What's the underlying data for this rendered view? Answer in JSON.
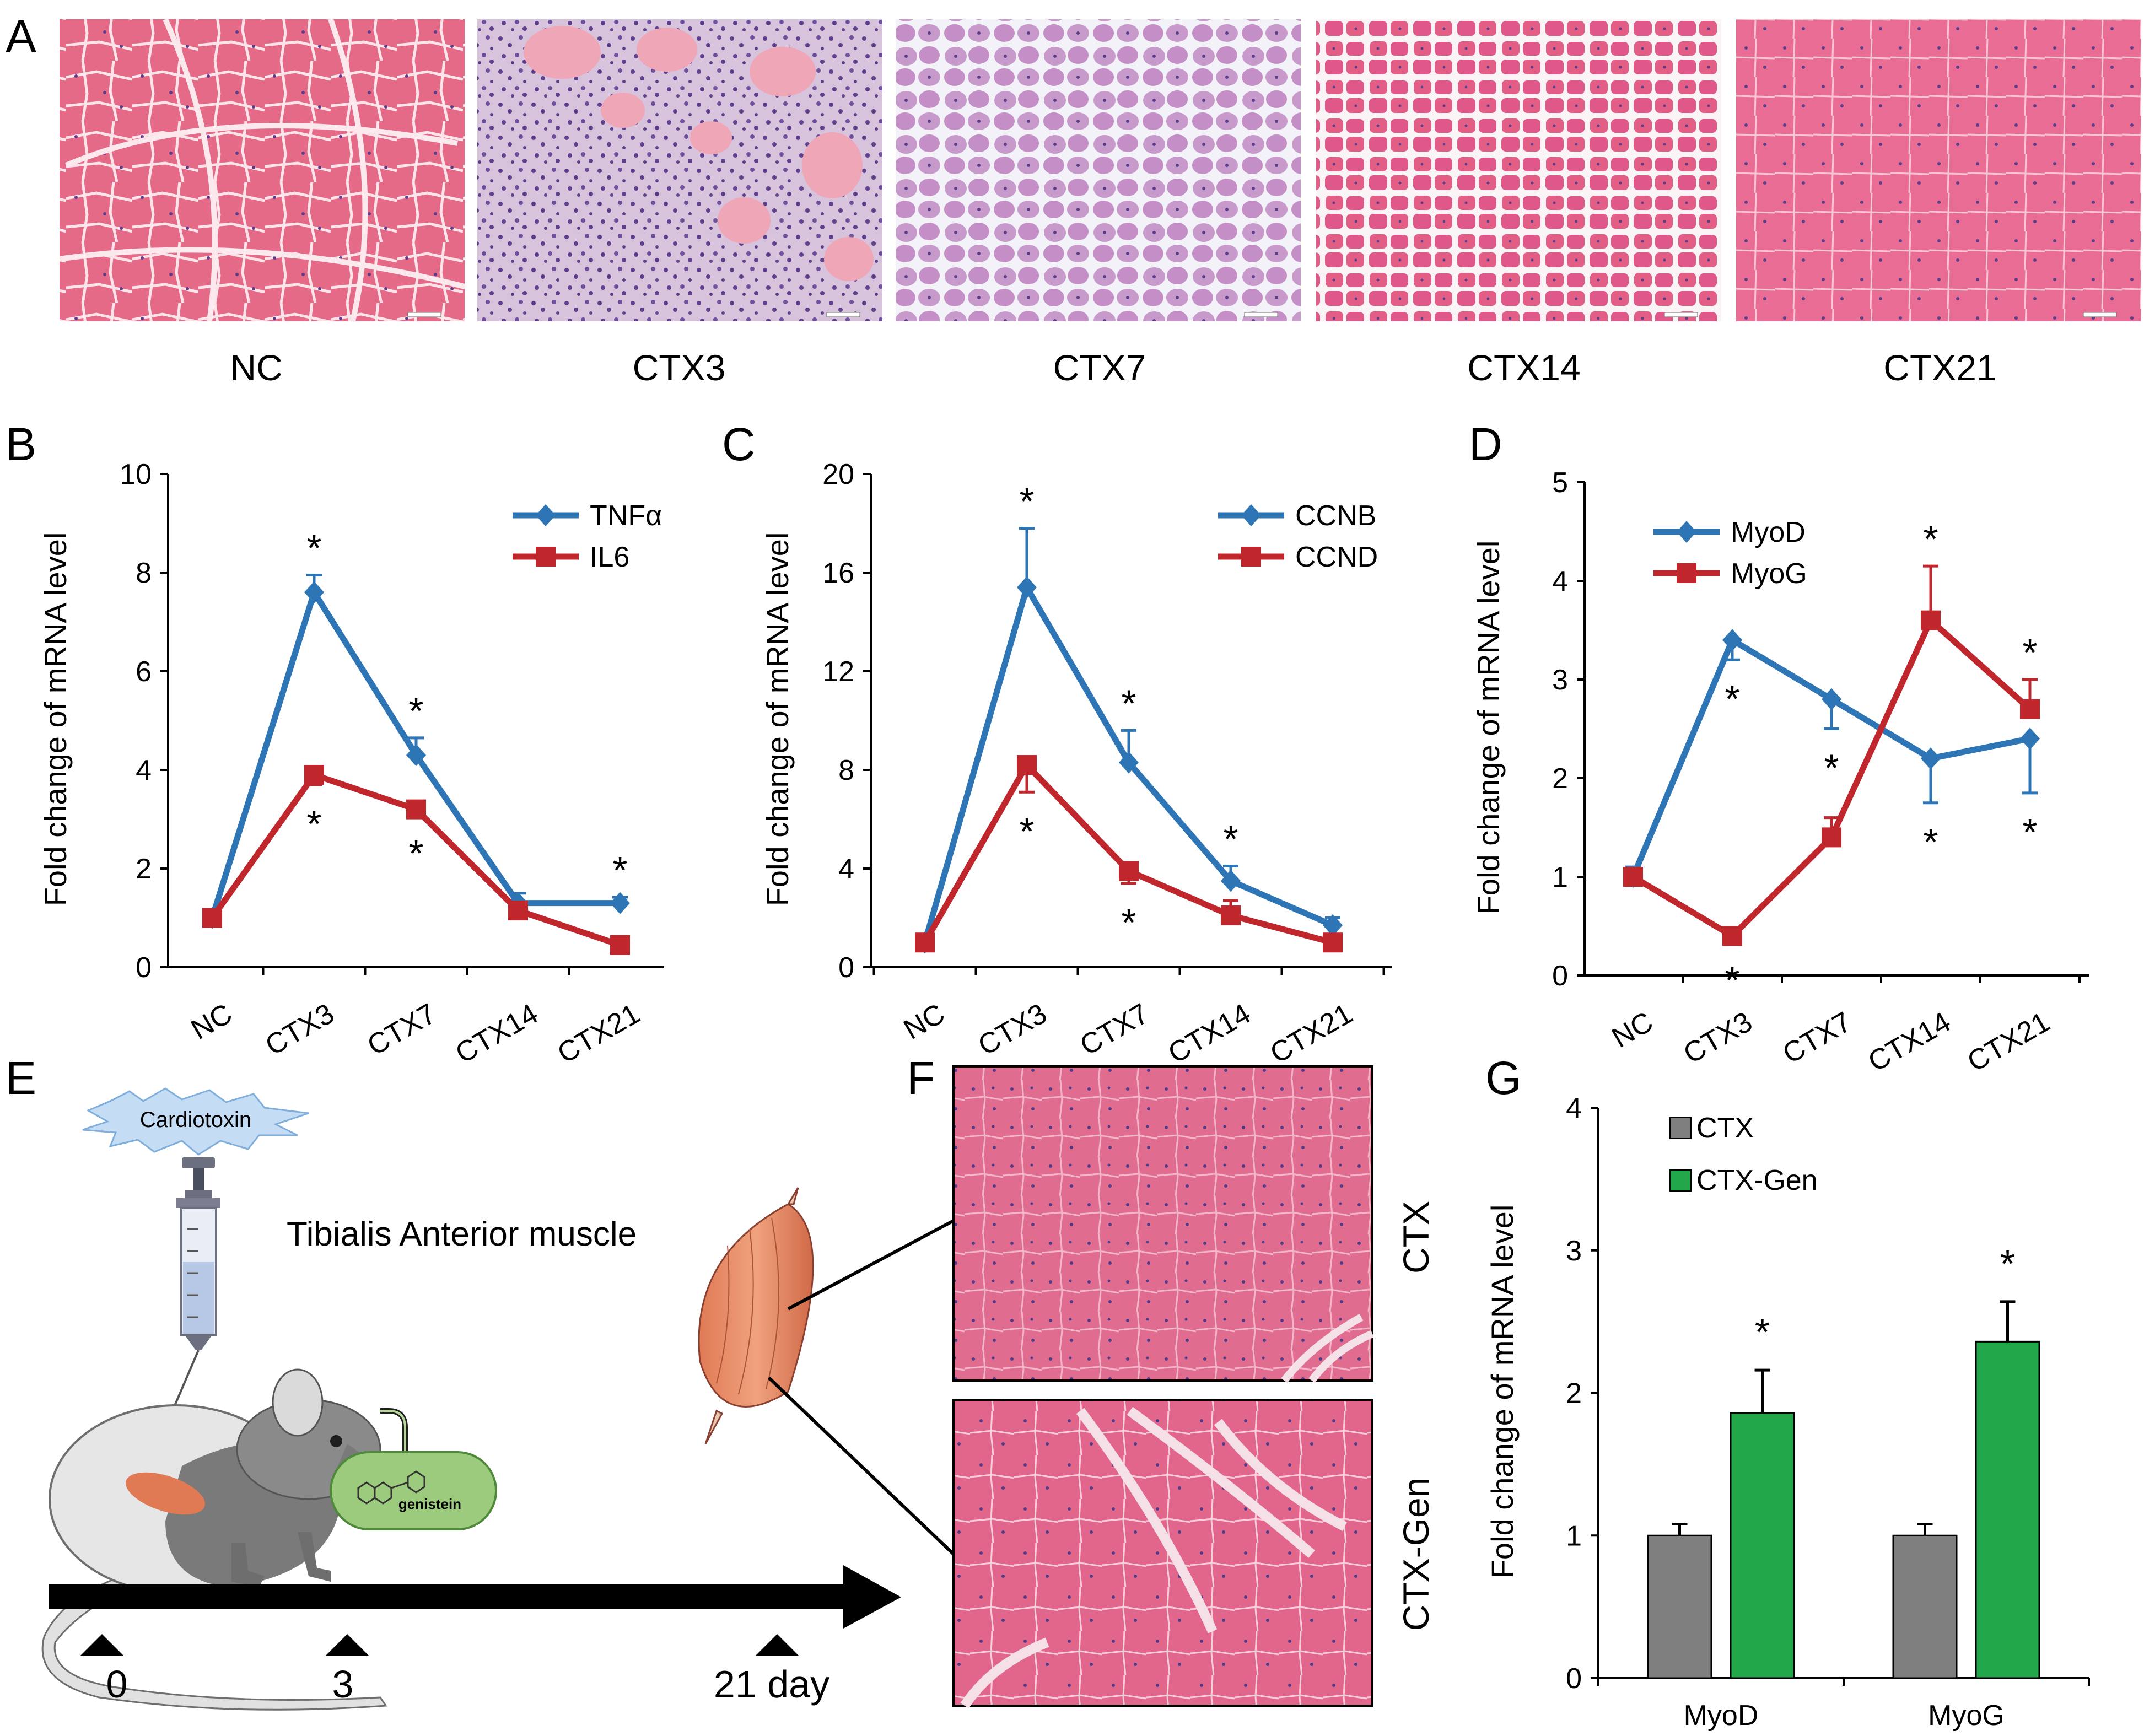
{
  "colors": {
    "blue": "#2E75B6",
    "red": "#C0272D",
    "gray": "#7F7F7F",
    "green": "#22A84A",
    "muscle_pink": "#E56A88",
    "muscle_light": "#F2B6C6",
    "inflam_purple": "#9C7FB6",
    "regen_lilac": "#C89ACB"
  },
  "panel_labels": [
    "A",
    "B",
    "C",
    "D",
    "E",
    "F",
    "G"
  ],
  "panel_a": {
    "captions": [
      "NC",
      "CTX3",
      "CTX7",
      "CTX14",
      "CTX21"
    ],
    "micrograph_names": [
      "histology-nc",
      "histology-ctx3",
      "histology-ctx7",
      "histology-ctx14",
      "histology-ctx21"
    ]
  },
  "panel_e": {
    "injection_label": "Cardiotoxin",
    "muscle_label": "Tibialis Anterior muscle",
    "compound_label": "genistein",
    "timeline_days": [
      "0",
      "3",
      "21 day"
    ]
  },
  "panel_f": {
    "captions": [
      "CTX",
      "CTX-Gen"
    ]
  },
  "chart_data": [
    {
      "panel": "B",
      "type": "line",
      "ylabel": "Fold change of mRNA level",
      "categories": [
        "NC",
        "CTX3",
        "CTX7",
        "CTX14",
        "CTX21"
      ],
      "ylim": [
        0,
        10
      ],
      "yticks": [
        0,
        2,
        4,
        6,
        8,
        10
      ],
      "legend_position": "top-right",
      "series": [
        {
          "name": "TNFα",
          "color": "#2E75B6",
          "marker": "diamond",
          "values": [
            1,
            7.6,
            4.3,
            1.3,
            1.3
          ],
          "errors": [
            0.08,
            0.35,
            0.35,
            0.2,
            0.12
          ],
          "stars": [
            "",
            "above",
            "above",
            "",
            "above"
          ]
        },
        {
          "name": "IL6",
          "color": "#C0272D",
          "marker": "square",
          "values": [
            1,
            3.9,
            3.2,
            1.15,
            0.45
          ],
          "errors": [
            0.05,
            0.2,
            0.1,
            0.1,
            0.05
          ],
          "stars": [
            "",
            "below",
            "below",
            "",
            ""
          ]
        }
      ],
      "star_symbol": "*"
    },
    {
      "panel": "C",
      "type": "line",
      "ylabel": "Fold change of mRNA level",
      "categories": [
        "NC",
        "CTX3",
        "CTX7",
        "CTX14",
        "CTX21"
      ],
      "ylim": [
        0,
        20
      ],
      "yticks": [
        0,
        4,
        8,
        12,
        16,
        20
      ],
      "legend_position": "top-right",
      "series": [
        {
          "name": "CCNB",
          "color": "#2E75B6",
          "marker": "diamond",
          "values": [
            1,
            15.4,
            8.3,
            3.5,
            1.7
          ],
          "errors": [
            0.1,
            2.4,
            1.3,
            0.6,
            0.3
          ],
          "stars": [
            "",
            "above",
            "above",
            "above",
            ""
          ]
        },
        {
          "name": "CCND",
          "color": "#C0272D",
          "marker": "square",
          "values": [
            1,
            8.2,
            3.9,
            2.1,
            1.0
          ],
          "errors": [
            0.1,
            1.1,
            0.5,
            0.6,
            0.1
          ],
          "stars": [
            "",
            "below",
            "below",
            "",
            ""
          ]
        }
      ],
      "star_symbol": "*"
    },
    {
      "panel": "D",
      "type": "line",
      "ylabel": "Fold change of mRNA level",
      "categories": [
        "NC",
        "CTX3",
        "CTX7",
        "CTX14",
        "CTX21"
      ],
      "ylim": [
        0,
        5
      ],
      "yticks": [
        0,
        1,
        2,
        3,
        4,
        5
      ],
      "legend_position": "top-left",
      "series": [
        {
          "name": "MyoD",
          "color": "#2E75B6",
          "marker": "diamond",
          "values": [
            1,
            3.4,
            2.8,
            2.2,
            2.4
          ],
          "errors": [
            0.1,
            0.2,
            0.3,
            0.45,
            0.55
          ],
          "stars": [
            "",
            "below",
            "below",
            "below",
            "below"
          ]
        },
        {
          "name": "MyoG",
          "color": "#C0272D",
          "marker": "square",
          "values": [
            1,
            0.4,
            1.4,
            3.6,
            2.7
          ],
          "errors": [
            0.05,
            0.05,
            0.2,
            0.55,
            0.3
          ],
          "stars": [
            "",
            "below",
            "",
            "above",
            "above"
          ]
        }
      ],
      "star_symbol": "*"
    },
    {
      "panel": "G",
      "type": "bar",
      "ylabel": "Fold change of mRNA level",
      "categories": [
        "MyoD",
        "MyoG"
      ],
      "ylim": [
        0,
        4
      ],
      "yticks": [
        0,
        1,
        2,
        3,
        4
      ],
      "legend_position": "top-left",
      "series": [
        {
          "name": "CTX",
          "color": "#7F7F7F",
          "values": [
            1.0,
            1.0
          ],
          "errors": [
            0.08,
            0.08
          ],
          "stars": [
            "",
            ""
          ]
        },
        {
          "name": "CTX-Gen",
          "color": "#22A84A",
          "values": [
            1.86,
            2.36
          ],
          "errors": [
            0.3,
            0.28
          ],
          "stars": [
            "above",
            "above"
          ]
        }
      ],
      "star_symbol": "*"
    }
  ]
}
